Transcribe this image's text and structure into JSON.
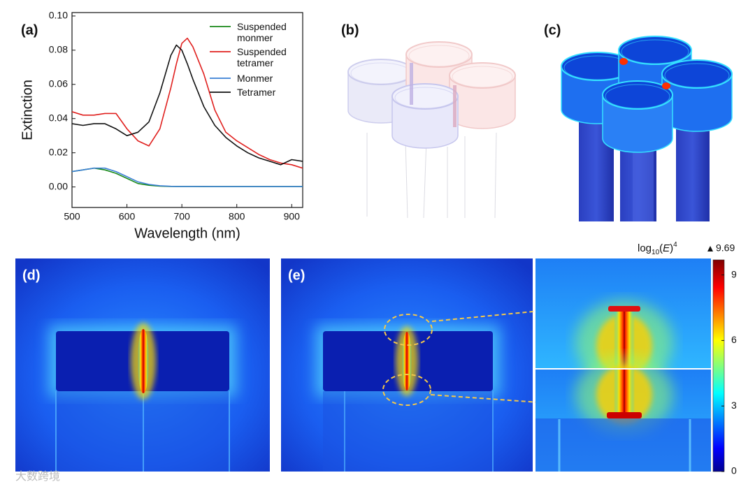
{
  "chart_data": {
    "type": "line",
    "x_label": "Wavelength (nm)",
    "y_label": "Extinction",
    "x": [
      500,
      520,
      540,
      560,
      580,
      600,
      620,
      640,
      660,
      680,
      690,
      700,
      710,
      720,
      740,
      760,
      780,
      800,
      820,
      840,
      860,
      880,
      900,
      920
    ],
    "series": [
      {
        "name": "Suspended monmer",
        "color": "#1a8a1a",
        "values": [
          0.009,
          0.01,
          0.011,
          0.01,
          0.008,
          0.005,
          0.002,
          0.001,
          0.0005,
          0.0003,
          0.0003,
          0.0003,
          0.0003,
          0.0003,
          0.0002,
          0.0002,
          0.0002,
          0.0002,
          0.0002,
          0.0002,
          0.0002,
          0.0002,
          0.0002,
          0.0002
        ]
      },
      {
        "name": "Suspended tetramer",
        "color": "#e0201e",
        "values": [
          0.044,
          0.042,
          0.042,
          0.043,
          0.043,
          0.034,
          0.027,
          0.024,
          0.034,
          0.058,
          0.072,
          0.084,
          0.087,
          0.082,
          0.066,
          0.045,
          0.032,
          0.027,
          0.023,
          0.019,
          0.016,
          0.014,
          0.013,
          0.011
        ]
      },
      {
        "name": "Monmer",
        "color": "#3a7fd5",
        "values": [
          0.009,
          0.01,
          0.011,
          0.011,
          0.009,
          0.006,
          0.003,
          0.0015,
          0.0007,
          0.0004,
          0.0003,
          0.0003,
          0.0003,
          0.0003,
          0.0003,
          0.0002,
          0.0002,
          0.0002,
          0.0002,
          0.0002,
          0.0002,
          0.0002,
          0.0002,
          0.0002
        ]
      },
      {
        "name": "Tetramer",
        "color": "#111111",
        "values": [
          0.037,
          0.036,
          0.037,
          0.037,
          0.034,
          0.03,
          0.032,
          0.038,
          0.055,
          0.077,
          0.083,
          0.08,
          0.072,
          0.063,
          0.047,
          0.036,
          0.029,
          0.024,
          0.02,
          0.017,
          0.015,
          0.013,
          0.016,
          0.015
        ]
      }
    ],
    "xlim": [
      500,
      920
    ],
    "xticks": [
      500,
      600,
      700,
      800,
      900
    ],
    "ylim": [
      -0.012,
      0.102
    ],
    "yticks": [
      {
        "value": 0,
        "label": "0.00"
      },
      {
        "value": 0.02,
        "label": "0.02"
      },
      {
        "value": 0.04,
        "label": "0.04"
      },
      {
        "value": 0.06,
        "label": "0.06"
      },
      {
        "value": 0.08,
        "label": "0.08"
      },
      {
        "value": 0.1,
        "label": "0.10"
      }
    ],
    "legend": "upper right"
  },
  "panel_labels": [
    "(a)",
    "(b)",
    "(c)",
    "(d)",
    "(e)"
  ],
  "colorbar": {
    "label": {
      "prefix": "log",
      "sub": "10",
      "open": "(",
      "var": "E",
      "close": ")",
      "sup": "4"
    },
    "ylim": [
      0,
      9.69
    ],
    "yticks": [
      0,
      3,
      6,
      9
    ]
  },
  "watermark": "大数跨境"
}
